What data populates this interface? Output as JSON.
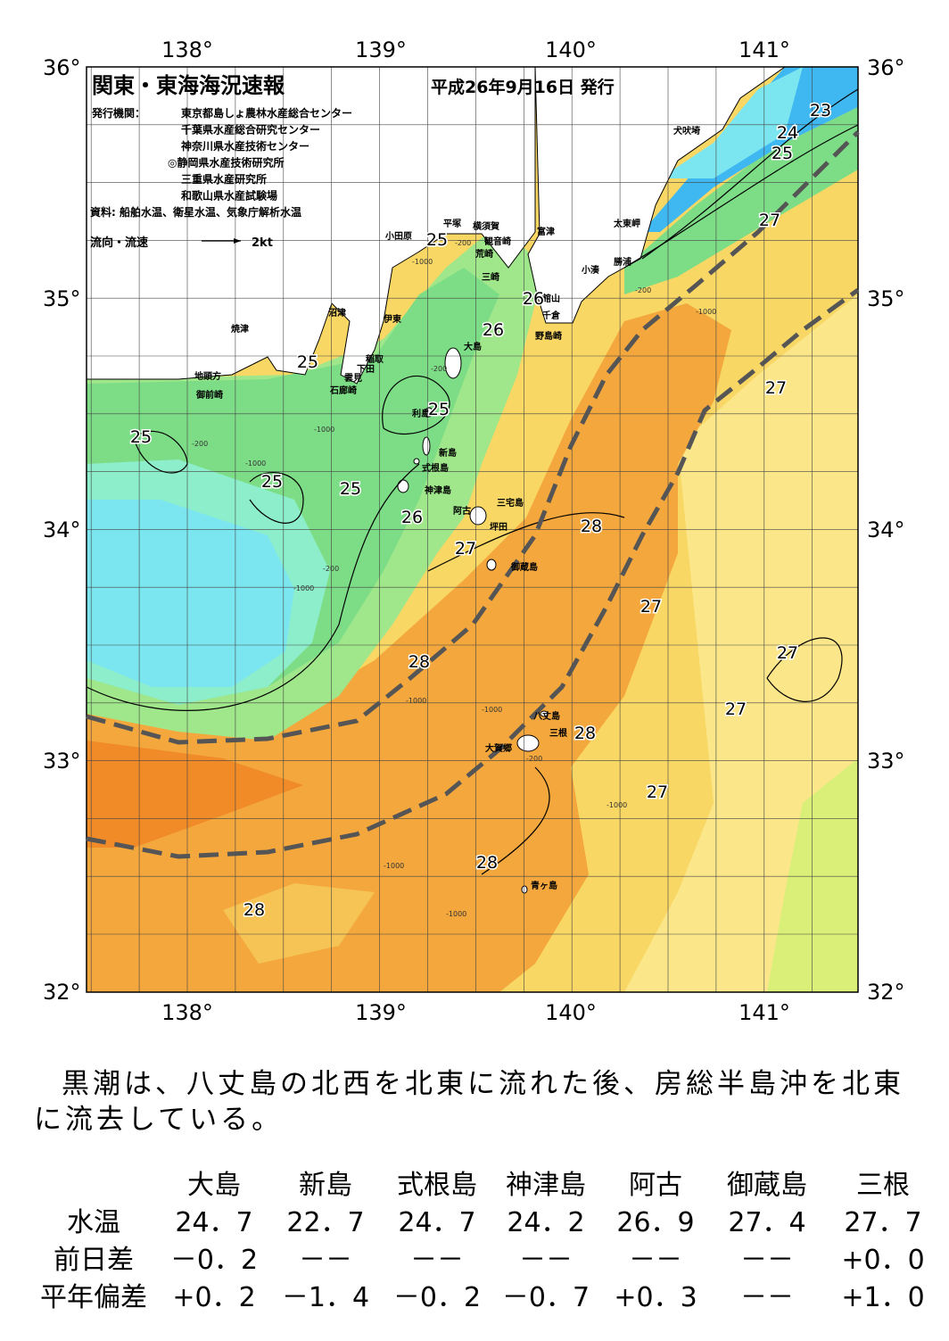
{
  "header": {
    "title": "関東・東海海況速報",
    "date": "平成26年9月16日 発行",
    "issuer_label": "発行機関：",
    "issuers": [
      "東京都島しょ農林水産総合センター",
      "千葉県水産総合研究センター",
      "神奈川県水産技術センター",
      "◎静岡県水産技術研究所",
      "三重県水産研究所",
      "和歌山県水産試験場"
    ],
    "source": "資料: 船舶水温、衛星水温、気象庁解析水温",
    "flow_legend": "流向・流速",
    "flow_unit": "2kt"
  },
  "map": {
    "lon_ticks": [
      "138°",
      "139°",
      "140°",
      "141°"
    ],
    "lat_ticks": [
      "36°",
      "35°",
      "34°",
      "33°",
      "32°"
    ],
    "places": [
      "犬吠埼",
      "太東岬",
      "勝浦",
      "小湊",
      "館山",
      "千倉",
      "野島崎",
      "富津",
      "観音崎",
      "荒崎",
      "三崎",
      "横須賀",
      "平塚",
      "小田原",
      "沼津",
      "伊東",
      "焼津",
      "稲取",
      "下田",
      "雲見",
      "石廊崎",
      "地頭方",
      "御前崎",
      "大島",
      "利島",
      "新島",
      "式根島",
      "神津島",
      "三宅島",
      "阿古",
      "坪田",
      "御蔵島",
      "八丈島",
      "三根",
      "大賀郷",
      "青ヶ島"
    ],
    "isotherm_labels": [
      "23",
      "24",
      "25",
      "27",
      "25",
      "26",
      "26",
      "25",
      "25",
      "25",
      "25",
      "25",
      "26",
      "27",
      "28",
      "27",
      "27",
      "27",
      "28",
      "27",
      "28",
      "27",
      "28",
      "28"
    ],
    "depth_labels": [
      "-200",
      "-1000",
      "-200",
      "-1000",
      "-200",
      "-1000",
      "-200",
      "-1000",
      "-1000",
      "-1000",
      "-200",
      "-1000",
      "-1000",
      "-1000",
      "-1000",
      "-200"
    ]
  },
  "summary": "黒潮は、八丈島の北西を北東に流れた後、房総半島沖を北東に流去している。",
  "table": {
    "columns": [
      "大島",
      "新島",
      "式根島",
      "神津島",
      "阿古",
      "御蔵島",
      "三根"
    ],
    "rows": [
      {
        "label": "水温",
        "cells": [
          "24．7",
          "22．7",
          "24．7",
          "24．2",
          "26．9",
          "27．4",
          "27．7"
        ]
      },
      {
        "label": "前日差",
        "cells": [
          "－0．2",
          "－－",
          "－－",
          "－－",
          "－－",
          "－－",
          "+0．0"
        ]
      },
      {
        "label": "平年偏差",
        "cells": [
          "+0．2",
          "－1．4",
          "－0．2",
          "－0．7",
          "+0．3",
          "－－",
          "+1．0"
        ]
      }
    ]
  }
}
